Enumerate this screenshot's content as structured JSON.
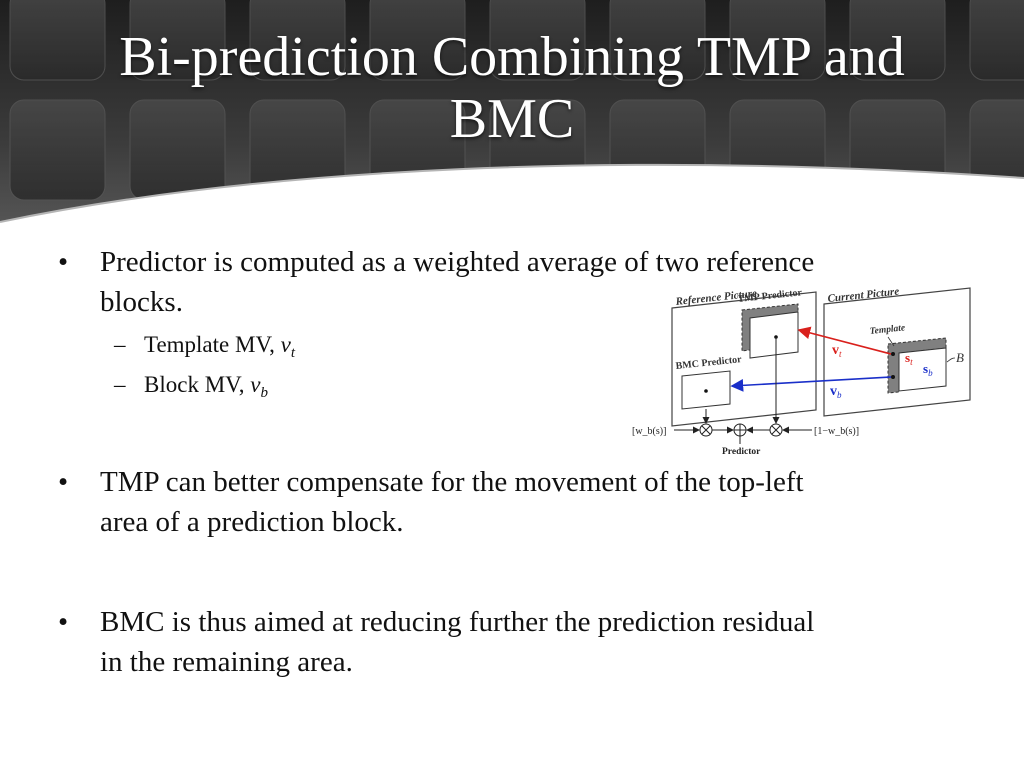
{
  "slide": {
    "title_line1": "Bi-prediction Combining TMP and",
    "title_line2": "BMC"
  },
  "bullets": [
    {
      "line1": "Predictor is computed as a weighted average of two reference",
      "line2": "blocks.",
      "sub": [
        {
          "label": "Template MV, ",
          "var": "v",
          "subscript": "t"
        },
        {
          "label": "Block MV, ",
          "var": "v",
          "subscript": "b"
        }
      ]
    },
    {
      "line1": "TMP can better compensate for the movement of the top-left",
      "line2": "area of a prediction block."
    },
    {
      "line1": "BMC is thus aimed at reducing further the prediction residual",
      "line2": "in the remaining area."
    }
  ],
  "bullet_marker": "•",
  "sub_marker": "–",
  "diagram": {
    "reference_picture": "Reference Picture",
    "current_picture": "Current Picture",
    "tmp_predictor": "TMP Predictor",
    "bmc_predictor": "BMC Predictor",
    "template": "Template",
    "vt_main": "v",
    "vt_sub": "t",
    "vb_main": "v",
    "vb_sub": "b",
    "st_main": "s",
    "st_sub": "t",
    "sb_main": "s",
    "sb_sub": "b",
    "block_label": "B",
    "weight_left": "[w_b(s)]",
    "weight_right": "[1−w_b(s)]",
    "predictor": "Predictor",
    "colors": {
      "vt": "#d9201c",
      "vb": "#1a2fc9",
      "template_fill": "#808080"
    }
  }
}
